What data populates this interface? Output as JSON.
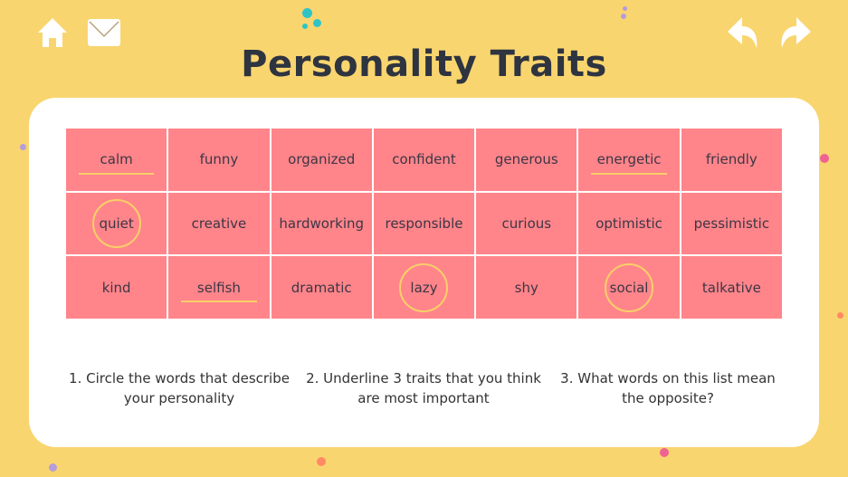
{
  "nav": {
    "home_icon": "home-icon",
    "mail_icon": "mail-icon",
    "back_icon": "reply-arrow-icon",
    "forward_icon": "forward-arrow-icon"
  },
  "title": "Personality Traits",
  "colors": {
    "background": "#f9d56f",
    "cell": "#ff858a",
    "highlight": "#f9cf6a",
    "title": "#2e3440"
  },
  "traits": [
    [
      {
        "word": "calm",
        "mark": "underline"
      },
      {
        "word": "funny"
      },
      {
        "word": "organized"
      },
      {
        "word": "confident"
      },
      {
        "word": "generous"
      },
      {
        "word": "energetic",
        "mark": "underline"
      },
      {
        "word": "friendly"
      }
    ],
    [
      {
        "word": "quiet",
        "mark": "circle"
      },
      {
        "word": "creative"
      },
      {
        "word": "hardworking"
      },
      {
        "word": "responsible"
      },
      {
        "word": "curious"
      },
      {
        "word": "optimistic"
      },
      {
        "word": "pessimistic"
      }
    ],
    [
      {
        "word": "kind"
      },
      {
        "word": "selfish",
        "mark": "underline"
      },
      {
        "word": "dramatic"
      },
      {
        "word": "lazy",
        "mark": "circle"
      },
      {
        "word": "shy"
      },
      {
        "word": "social",
        "mark": "circle"
      },
      {
        "word": "talkative"
      }
    ]
  ],
  "instructions": [
    "1. Circle the words that describe your personality",
    "2. Underline 3 traits that you think are most important",
    "3. What words on this list mean the opposite?"
  ]
}
